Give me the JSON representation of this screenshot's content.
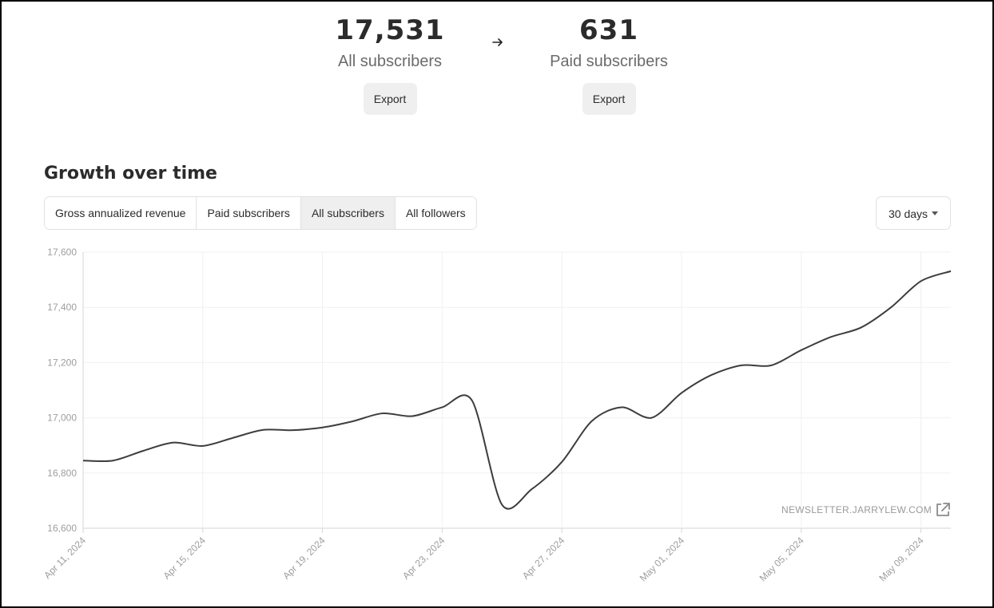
{
  "stats": {
    "all": {
      "value": "17,531",
      "label": "All subscribers",
      "export_label": "Export"
    },
    "paid": {
      "value": "631",
      "label": "Paid subscribers",
      "export_label": "Export"
    }
  },
  "growth": {
    "title": "Growth over time",
    "tabs": [
      {
        "label": "Gross annualized revenue",
        "active": false
      },
      {
        "label": "Paid subscribers",
        "active": false
      },
      {
        "label": "All subscribers",
        "active": true
      },
      {
        "label": "All followers",
        "active": false
      }
    ],
    "range_select": {
      "value": "30 days"
    },
    "watermark": "NEWSLETTER.JARRYLEW.COM"
  },
  "icons": {
    "arrow": "arrow-right-icon",
    "caret": "caret-down-icon",
    "external": "external-link-icon"
  },
  "colors": {
    "line": "#3d3d3d",
    "grid": "#f0f0f0",
    "tick_text": "#9e9e9e",
    "tab_active_bg": "#efefef"
  },
  "chart_data": {
    "type": "line",
    "title": "",
    "xlabel": "",
    "ylabel": "",
    "ylim": [
      16600,
      17600
    ],
    "y_ticks": [
      "16,600",
      "16,800",
      "17,000",
      "17,200",
      "17,400",
      "17,600"
    ],
    "x_ticks": [
      "Apr 11, 2024",
      "Apr 15, 2024",
      "Apr 19, 2024",
      "Apr 23, 2024",
      "Apr 27, 2024",
      "May 01, 2024",
      "May 05, 2024",
      "May 09, 2024"
    ],
    "grid": true,
    "series": [
      {
        "x": [
          "2024-04-11",
          "2024-04-12",
          "2024-04-13",
          "2024-04-14",
          "2024-04-15",
          "2024-04-16",
          "2024-04-17",
          "2024-04-18",
          "2024-04-19",
          "2024-04-20",
          "2024-04-21",
          "2024-04-22",
          "2024-04-23",
          "2024-04-24",
          "2024-04-25",
          "2024-04-26",
          "2024-04-27",
          "2024-04-28",
          "2024-04-29",
          "2024-04-30",
          "2024-05-01",
          "2024-05-02",
          "2024-05-03",
          "2024-05-04",
          "2024-05-05",
          "2024-05-06",
          "2024-05-07",
          "2024-05-08",
          "2024-05-09",
          "2024-05-10"
        ],
        "values": [
          16845,
          16845,
          16880,
          16910,
          16898,
          16927,
          16956,
          16955,
          16965,
          16987,
          17016,
          17006,
          17038,
          17062,
          16685,
          16742,
          16840,
          16988,
          17038,
          17000,
          17090,
          17155,
          17190,
          17190,
          17245,
          17293,
          17327,
          17400,
          17495,
          17531
        ]
      }
    ]
  }
}
